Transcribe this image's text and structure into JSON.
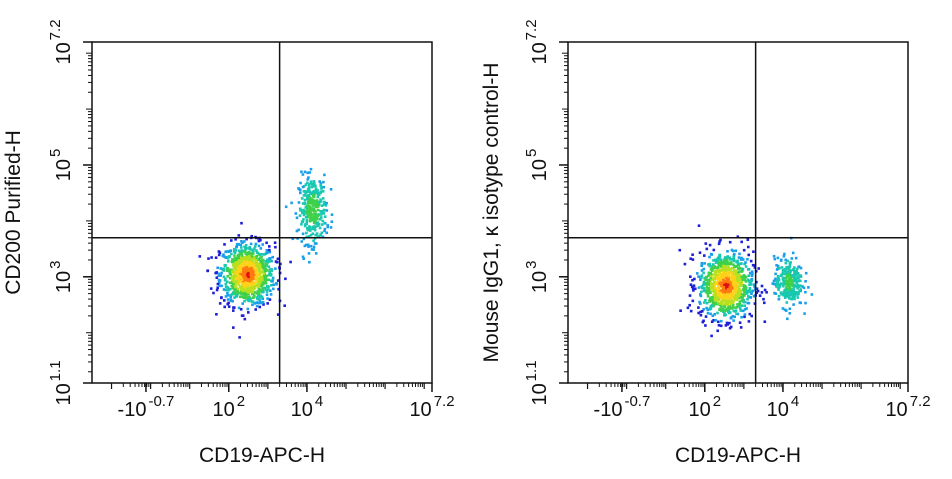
{
  "chart_data": [
    {
      "type": "scatter",
      "subtype": "flow-cytometry-pseudocolor-density",
      "xlabel": "CD19-APC-H",
      "ylabel": "CD200 Purified-H",
      "x_scale": "biexponential",
      "y_scale": "log",
      "xlim": [
        -10,
        15849000
      ],
      "ylim": [
        12.6,
        15849000
      ],
      "x_ticks": [
        {
          "value": -0.2,
          "base": "-10",
          "exp": "-0.7"
        },
        {
          "value": 100,
          "base": "10",
          "exp": "2"
        },
        {
          "value": 10000,
          "base": "10",
          "exp": "4"
        },
        {
          "value": 15849000,
          "base": "10",
          "exp": "7.2"
        }
      ],
      "y_ticks": [
        {
          "value": 12.6,
          "base": "10",
          "exp": "1.1"
        },
        {
          "value": 1000,
          "base": "10",
          "exp": "3"
        },
        {
          "value": 100000,
          "base": "10",
          "exp": "5"
        },
        {
          "value": 15849000,
          "base": "10",
          "exp": "7.2"
        }
      ],
      "quadrant_gate": {
        "x": 2000,
        "y": 5000
      },
      "populations": [
        {
          "id": "cd19-negative",
          "x_center": 300,
          "y_center": 1100,
          "relative_density": 1.0,
          "spread_x_decades": 0.35,
          "spread_y_decades": 0.28
        },
        {
          "id": "cd19-positive-cd200-high",
          "x_center": 14000,
          "y_center": 16000,
          "relative_density": 0.35,
          "spread_x_decades": 0.18,
          "spread_y_decades": 0.3
        }
      ],
      "grid": false
    },
    {
      "type": "scatter",
      "subtype": "flow-cytometry-pseudocolor-density",
      "xlabel": "CD19-APC-H",
      "ylabel": "Mouse IgG1, κ isotype control-H",
      "x_scale": "biexponential",
      "y_scale": "log",
      "xlim": [
        -10,
        15849000
      ],
      "ylim": [
        12.6,
        15849000
      ],
      "x_ticks": [
        {
          "value": -0.2,
          "base": "-10",
          "exp": "-0.7"
        },
        {
          "value": 100,
          "base": "10",
          "exp": "2"
        },
        {
          "value": 10000,
          "base": "10",
          "exp": "4"
        },
        {
          "value": 15849000,
          "base": "10",
          "exp": "7.2"
        }
      ],
      "y_ticks": [
        {
          "value": 12.6,
          "base": "10",
          "exp": "1.1"
        },
        {
          "value": 1000,
          "base": "10",
          "exp": "3"
        },
        {
          "value": 100000,
          "base": "10",
          "exp": "5"
        },
        {
          "value": 15849000,
          "base": "10",
          "exp": "7.2"
        }
      ],
      "quadrant_gate": {
        "x": 2000,
        "y": 5000
      },
      "populations": [
        {
          "id": "cd19-negative",
          "x_center": 350,
          "y_center": 700,
          "relative_density": 1.0,
          "spread_x_decades": 0.35,
          "spread_y_decades": 0.3
        },
        {
          "id": "cd19-positive-isotype",
          "x_center": 14000,
          "y_center": 800,
          "relative_density": 0.3,
          "spread_x_decades": 0.18,
          "spread_y_decades": 0.22
        }
      ],
      "grid": false
    }
  ],
  "density_colors": [
    "#1f1fd6",
    "#1aa0e8",
    "#18c8b0",
    "#3fd04a",
    "#b8e01e",
    "#ffd21a",
    "#ff7a10",
    "#e01010"
  ]
}
